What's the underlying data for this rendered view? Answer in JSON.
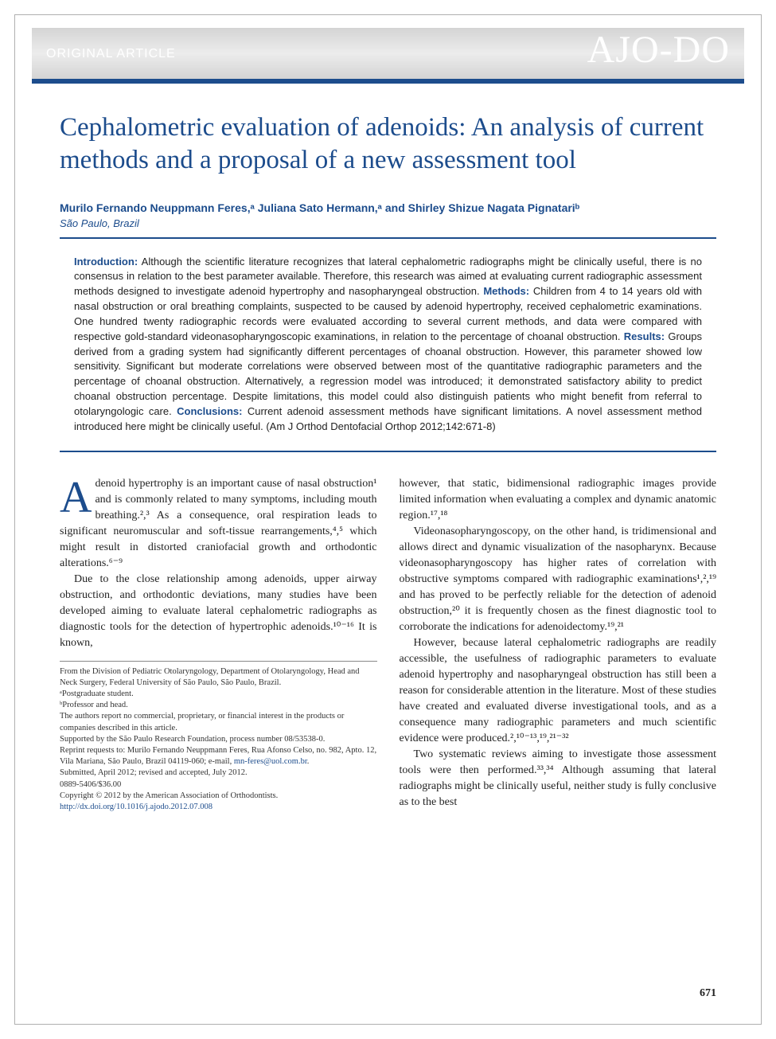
{
  "header": {
    "section_label": "ORIGINAL ARTICLE",
    "journal_logo": "AJO-DO"
  },
  "colors": {
    "brand_blue": "#1c4c8c",
    "header_gradient_light": "#ececec",
    "header_gradient_dark": "#d4d4d4",
    "text": "#222222",
    "footnote_text": "#333333",
    "border": "#b0b0b0"
  },
  "title": "Cephalometric evaluation of adenoids: An analysis of current methods and a proposal of a new assessment tool",
  "authors_line": "Murilo Fernando Neuppmann Feres,ᵃ Juliana Sato Hermann,ᵃ and Shirley Shizue Nagata Pignatariᵇ",
  "location": "São Paulo, Brazil",
  "abstract": {
    "intro_label": "Introduction:",
    "intro_text": " Although the scientific literature recognizes that lateral cephalometric radiographs might be clinically useful, there is no consensus in relation to the best parameter available. Therefore, this research was aimed at evaluating current radiographic assessment methods designed to investigate adenoid hypertrophy and nasopharyngeal obstruction. ",
    "methods_label": "Methods:",
    "methods_text": " Children from 4 to 14 years old with nasal obstruction or oral breathing complaints, suspected to be caused by adenoid hypertrophy, received cephalometric examinations. One hundred twenty radiographic records were evaluated according to several current methods, and data were compared with respective gold-standard videonasopharyngoscopic examinations, in relation to the percentage of choanal obstruction. ",
    "results_label": "Results:",
    "results_text": " Groups derived from a grading system had significantly different percentages of choanal obstruction. However, this parameter showed low sensitivity. Significant but moderate correlations were observed between most of the quantitative radiographic parameters and the percentage of choanal obstruction. Alternatively, a regression model was introduced; it demonstrated satisfactory ability to predict choanal obstruction percentage. Despite limitations, this model could also distinguish patients who might benefit from referral to otolaryngologic care. ",
    "conclusions_label": "Conclusions:",
    "conclusions_text": " Current adenoid assessment methods have significant limitations. A novel assessment method introduced here might be clinically useful. (Am J Orthod Dentofacial Orthop 2012;142:671-8)"
  },
  "body": {
    "left": {
      "p1_dropcap": "A",
      "p1": "denoid hypertrophy is an important cause of nasal obstruction¹ and is commonly related to many symptoms, including mouth breathing.²,³ As a consequence, oral respiration leads to significant neuromuscular and soft-tissue rearrangements,⁴,⁵ which might result in distorted craniofacial growth and orthodontic alterations.⁶⁻⁹",
      "p2": "Due to the close relationship among adenoids, upper airway obstruction, and orthodontic deviations, many studies have been developed aiming to evaluate lateral cephalometric radiographs as diagnostic tools for the detection of hypertrophic adenoids.¹⁰⁻¹⁶ It is known,"
    },
    "right": {
      "p1": "however, that static, bidimensional radiographic images provide limited information when evaluating a complex and dynamic anatomic region.¹⁷,¹⁸",
      "p2": "Videonasopharyngoscopy, on the other hand, is tridimensional and allows direct and dynamic visualization of the nasopharynx. Because videonasopharyngoscopy has higher rates of correlation with obstructive symptoms compared with radiographic examinations¹,²,¹⁹ and has proved to be perfectly reliable for the detection of adenoid obstruction,²⁰ it is frequently chosen as the finest diagnostic tool to corroborate the indications for adenoidectomy.¹⁹,²¹",
      "p3": "However, because lateral cephalometric radiographs are readily accessible, the usefulness of radiographic parameters to evaluate adenoid hypertrophy and nasopharyngeal obstruction has still been a reason for considerable attention in the literature. Most of these studies have created and evaluated diverse investigational tools, and as a consequence many radiographic parameters and much scientific evidence were produced.²,¹⁰⁻¹³,¹⁹,²¹⁻³²",
      "p4": "Two systematic reviews aiming to investigate those assessment tools were then performed.³³,³⁴ Although assuming that lateral radiographs might be clinically useful, neither study is fully conclusive as to the best"
    }
  },
  "footnotes": {
    "f1": "From the Division of Pediatric Otolaryngology, Department of Otolaryngology, Head and Neck Surgery, Federal University of São Paulo, São Paulo, Brazil.",
    "f2": "ᵃPostgraduate student.",
    "f3": "ᵇProfessor and head.",
    "f4": "The authors report no commercial, proprietary, or financial interest in the products or companies described in this article.",
    "f5": "Supported by the São Paulo Research Foundation, process number 08/53538-0.",
    "f6_a": "Reprint requests to: Murilo Fernando Neuppmann Feres, Rua Afonso Celso, no. 982, Apto. 12, Vila Mariana, São Paulo, Brazil 04119-060; e-mail, ",
    "f6_link": "mn-feres@uol.com.br",
    "f6_b": ".",
    "f7": "Submitted, April 2012; revised and accepted, July 2012.",
    "f8": "0889-5406/$36.00",
    "f9": "Copyright © 2012 by the American Association of Orthodontists.",
    "f10": "http://dx.doi.org/10.1016/j.ajodo.2012.07.008"
  },
  "page_number": "671"
}
